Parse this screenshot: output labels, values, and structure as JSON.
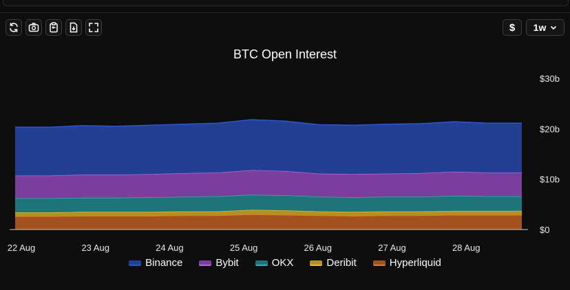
{
  "toolbar": {
    "icons": [
      "refresh-icon",
      "camera-icon",
      "clipboard-icon",
      "download-file-icon",
      "fullscreen-icon"
    ],
    "currency_label": "$",
    "range_label": "1w"
  },
  "colors": {
    "Binance": "#223f94",
    "Bybit": "#7a3f9c",
    "OKX": "#1e7579",
    "Deribit": "#b3901f",
    "Hyperliquid": "#a3511d",
    "line_Binance": "#2f56d6",
    "line_Bybit": "#b865e8",
    "line_OKX": "#2cb3b8",
    "line_Deribit": "#e8be34",
    "line_Hyperliquid": "#e8752f"
  },
  "chart_data": {
    "type": "area",
    "stacked": true,
    "title": "BTC Open Interest",
    "y_ticks": [
      "$0",
      "$10b",
      "$20b",
      "$30b"
    ],
    "x_ticks": [
      "22 Aug",
      "23 Aug",
      "24 Aug",
      "25 Aug",
      "26 Aug",
      "27 Aug",
      "28 Aug"
    ],
    "ylim": [
      0,
      30
    ],
    "y_unit": "billion USD",
    "x": [
      "21 Aug 22:00",
      "22 Aug",
      "22 Aug 12:00",
      "23 Aug",
      "23 Aug 12:00",
      "24 Aug",
      "24 Aug 12:00",
      "25 Aug",
      "25 Aug 12:00",
      "26 Aug",
      "26 Aug 12:00",
      "27 Aug",
      "27 Aug 12:00",
      "28 Aug",
      "28 Aug 12:00",
      "28 Aug 18:00"
    ],
    "series": [
      {
        "name": "Hyperliquid",
        "values": [
          2.6,
          2.6,
          2.7,
          2.7,
          2.7,
          2.8,
          2.8,
          3.0,
          2.9,
          2.8,
          2.7,
          2.8,
          2.8,
          2.9,
          2.9,
          2.9
        ]
      },
      {
        "name": "Deribit",
        "values": [
          0.8,
          0.8,
          0.8,
          0.8,
          0.8,
          0.8,
          0.8,
          0.9,
          0.9,
          0.8,
          0.8,
          0.8,
          0.8,
          0.8,
          0.8,
          0.8
        ]
      },
      {
        "name": "OKX",
        "values": [
          2.8,
          2.8,
          2.8,
          2.8,
          2.9,
          2.9,
          3.0,
          3.0,
          3.0,
          2.9,
          2.9,
          2.9,
          2.9,
          3.0,
          2.9,
          2.9
        ]
      },
      {
        "name": "Bybit",
        "values": [
          4.5,
          4.5,
          4.6,
          4.6,
          4.6,
          4.7,
          4.7,
          4.9,
          4.8,
          4.6,
          4.6,
          4.6,
          4.7,
          4.8,
          4.7,
          4.7
        ]
      },
      {
        "name": "Binance",
        "values": [
          9.6,
          9.6,
          9.7,
          9.6,
          9.7,
          9.7,
          9.8,
          10.0,
          9.9,
          9.7,
          9.7,
          9.8,
          9.8,
          9.9,
          9.8,
          9.8
        ]
      }
    ],
    "legend": [
      "Binance",
      "Bybit",
      "OKX",
      "Deribit",
      "Hyperliquid"
    ],
    "legend_position": "bottom",
    "grid": false
  }
}
